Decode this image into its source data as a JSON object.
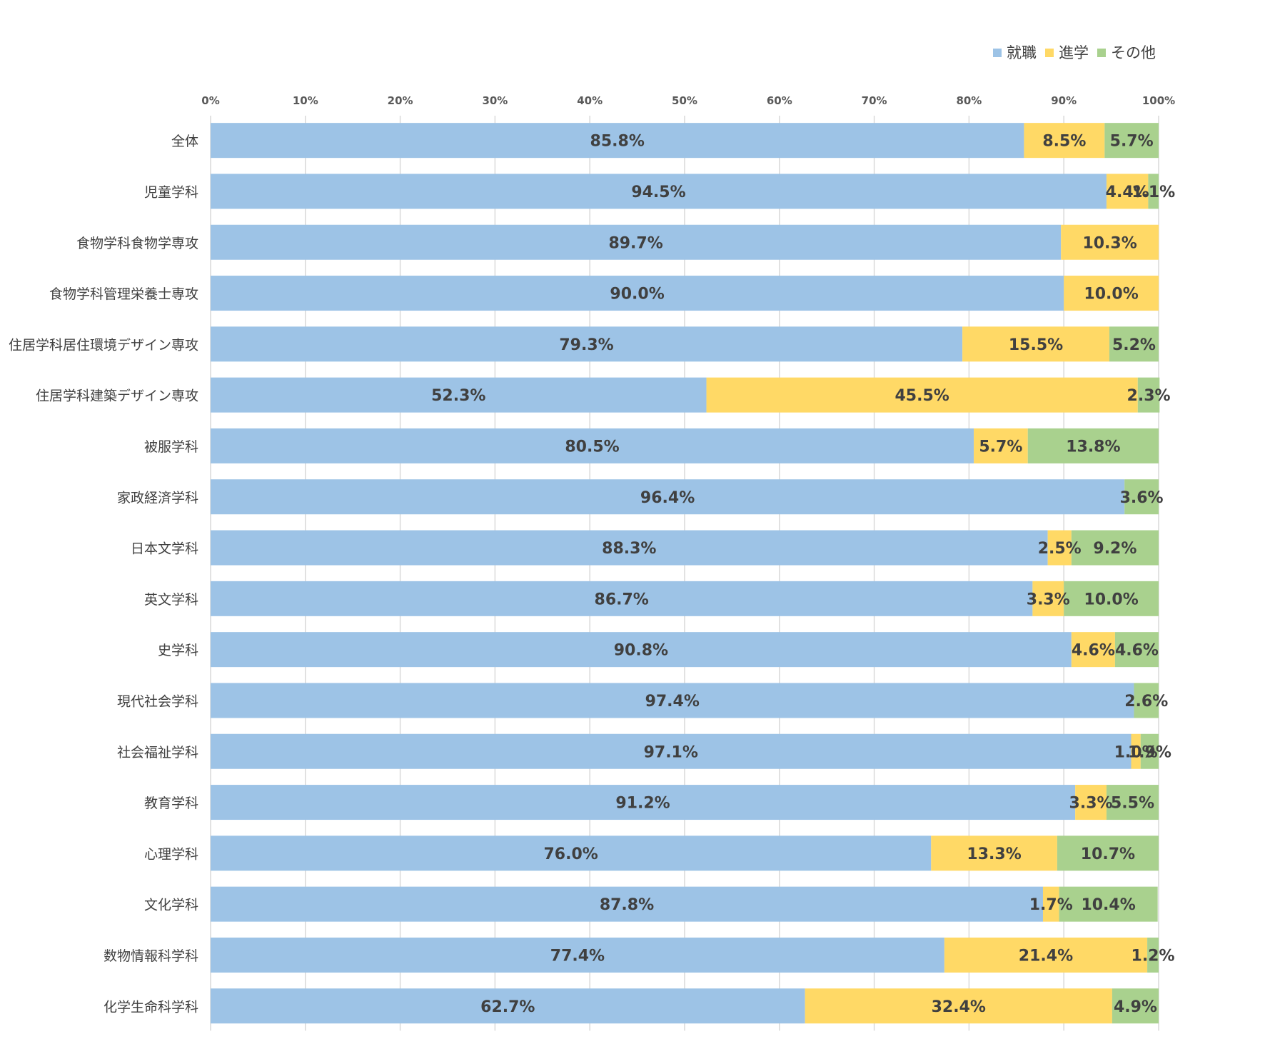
{
  "chart_data": {
    "type": "bar",
    "orientation": "horizontal",
    "stacked": true,
    "title": "",
    "xlabel": "",
    "ylabel": "",
    "xlim": [
      0,
      100
    ],
    "x_ticks": [
      "0%",
      "10%",
      "20%",
      "30%",
      "40%",
      "50%",
      "60%",
      "70%",
      "80%",
      "90%",
      "100%"
    ],
    "grid": true,
    "legend_position": "top-right",
    "categories": [
      "全体",
      "児童学科",
      "食物学科食物学専攻",
      "食物学科管理栄養士専攻",
      "住居学科居住環境デザイン専攻",
      "住居学科建築デザイン専攻",
      "被服学科",
      "家政経済学科",
      "日本文学科",
      "英文学科",
      "史学科",
      "現代社会学科",
      "社会福祉学科",
      "教育学科",
      "心理学科",
      "文化学科",
      "数物情報科学科",
      "化学生命科学科"
    ],
    "series": [
      {
        "name": "就職",
        "color": "#9dc3e6",
        "values": [
          85.8,
          94.5,
          89.7,
          90.0,
          79.3,
          52.3,
          80.5,
          96.4,
          88.3,
          86.7,
          90.8,
          97.4,
          97.1,
          91.2,
          76.0,
          87.8,
          77.4,
          62.7
        ]
      },
      {
        "name": "進学",
        "color": "#ffd966",
        "values": [
          8.5,
          4.4,
          10.3,
          10.0,
          15.5,
          45.5,
          5.7,
          0,
          2.5,
          3.3,
          4.6,
          0,
          1.0,
          3.3,
          13.3,
          1.7,
          21.4,
          32.4
        ]
      },
      {
        "name": "その他",
        "color": "#a9d18e",
        "values": [
          5.7,
          1.1,
          0,
          0,
          5.2,
          2.3,
          13.8,
          3.6,
          9.2,
          10.0,
          4.6,
          2.6,
          1.9,
          5.5,
          10.7,
          10.4,
          1.2,
          4.9
        ]
      }
    ]
  }
}
